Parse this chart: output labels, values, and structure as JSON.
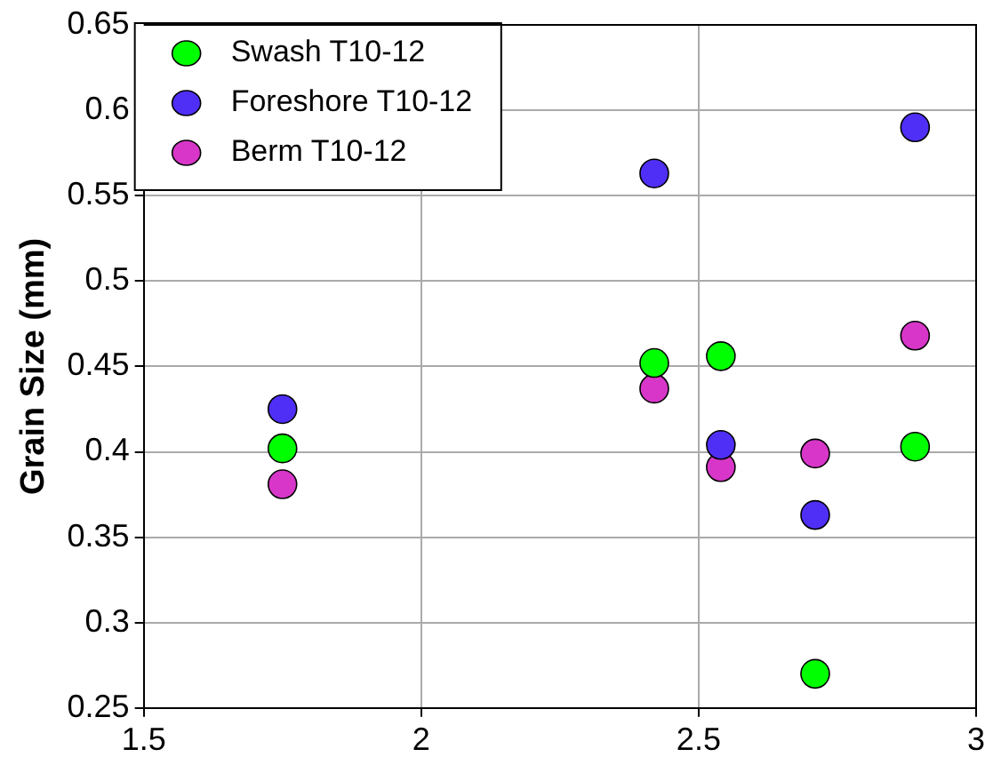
{
  "chart_data": {
    "type": "scatter",
    "ylabel": "Grain Size (mm)",
    "x": [
      1.75,
      2.42,
      2.54,
      2.71,
      2.89
    ],
    "series": [
      {
        "name": "Swash T10-12",
        "color": "#00ff00",
        "values": [
          0.402,
          0.452,
          0.456,
          0.27,
          0.403
        ]
      },
      {
        "name": "Foreshore T10-12",
        "color": "#4f2ff6",
        "values": [
          0.425,
          0.563,
          0.404,
          0.363,
          0.59
        ]
      },
      {
        "name": "Berm T10-12",
        "color": "#d836c9",
        "values": [
          0.381,
          0.437,
          0.391,
          0.399,
          0.468
        ]
      }
    ],
    "xlim": [
      1.5,
      3
    ],
    "xticks": [
      1.5,
      2,
      2.5,
      3
    ],
    "ylim": [
      0.25,
      0.65
    ],
    "yticks": [
      0.25,
      0.3,
      0.35,
      0.4,
      0.45,
      0.5,
      0.55,
      0.6,
      0.65
    ],
    "grid": true,
    "legend": "top left",
    "marker": "circle"
  }
}
